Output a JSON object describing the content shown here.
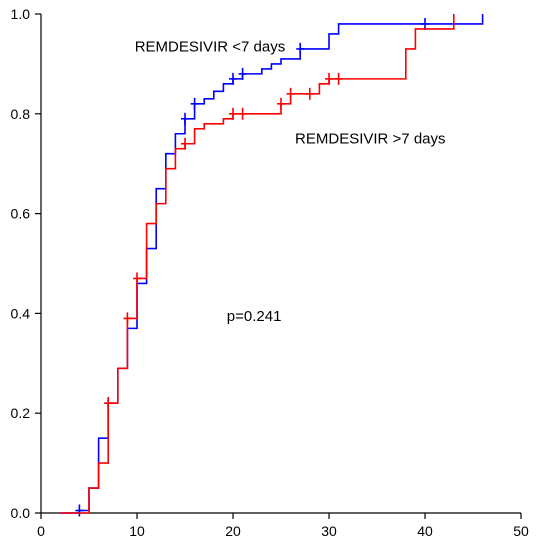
{
  "chart_data": {
    "type": "line",
    "title": "",
    "xlabel": "",
    "ylabel": "",
    "xlim": [
      0,
      50
    ],
    "ylim": [
      0,
      1.0
    ],
    "x_ticks": [
      0,
      10,
      20,
      30,
      40,
      50
    ],
    "y_ticks": [
      0.0,
      0.2,
      0.4,
      0.6,
      0.8,
      1.0
    ],
    "x_tick_labels": [
      "0",
      "10",
      "20",
      "30",
      "40",
      "50"
    ],
    "y_tick_labels": [
      "0.0",
      "0.2",
      "0.4",
      "0.6",
      "0.8",
      "1.0"
    ],
    "grid": false,
    "legend": "none",
    "step": true,
    "series": [
      {
        "name": "REMDESIVIR <7 days",
        "color": "#0000ff",
        "x": [
          2,
          4,
          5,
          6,
          7,
          8,
          9,
          10,
          11,
          12,
          13,
          14,
          15,
          16,
          17,
          18,
          19,
          20,
          21,
          23,
          24,
          25,
          27,
          28,
          30,
          31,
          35,
          40,
          46
        ],
        "y": [
          0,
          0.005,
          0.05,
          0.15,
          0.22,
          0.29,
          0.37,
          0.46,
          0.53,
          0.65,
          0.72,
          0.76,
          0.79,
          0.82,
          0.83,
          0.845,
          0.86,
          0.87,
          0.88,
          0.89,
          0.9,
          0.91,
          0.93,
          0.93,
          0.96,
          0.98,
          0.98,
          0.98,
          1.0
        ],
        "censor_x": [
          4,
          7,
          15,
          16,
          20,
          21,
          27,
          40
        ],
        "censor_y": [
          0.005,
          0.22,
          0.79,
          0.82,
          0.87,
          0.88,
          0.93,
          0.98
        ]
      },
      {
        "name": "REMDESIVIR >7 days",
        "color": "#ff0000",
        "x": [
          2,
          5,
          6,
          7,
          8,
          9,
          10,
          11,
          12,
          13,
          14,
          15,
          16,
          17,
          18,
          19,
          20,
          21,
          25,
          26,
          28,
          29,
          30,
          31,
          38,
          39,
          43
        ],
        "y": [
          0,
          0.05,
          0.1,
          0.22,
          0.29,
          0.39,
          0.47,
          0.58,
          0.62,
          0.69,
          0.73,
          0.74,
          0.77,
          0.78,
          0.78,
          0.79,
          0.8,
          0.8,
          0.82,
          0.84,
          0.84,
          0.86,
          0.87,
          0.87,
          0.93,
          0.97,
          1.0
        ],
        "censor_x": [
          7,
          9,
          10,
          15,
          20,
          21,
          25,
          26,
          28,
          30,
          31
        ],
        "censor_y": [
          0.22,
          0.39,
          0.47,
          0.74,
          0.8,
          0.8,
          0.82,
          0.84,
          0.84,
          0.87,
          0.87
        ]
      }
    ],
    "annotations": [
      {
        "id": "label-less",
        "text": "REMDESIVIR <7 days",
        "x": 17.6,
        "y": 0.925
      },
      {
        "id": "label-more",
        "text": "REMDESIVIR >7 days",
        "x": 34.3,
        "y": 0.74
      },
      {
        "id": "pvalue",
        "text": "p=0.241",
        "x": 22.2,
        "y": 0.385
      }
    ]
  }
}
